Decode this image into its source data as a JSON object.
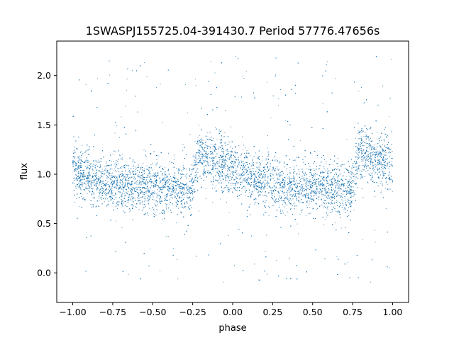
{
  "chart_data": {
    "type": "scatter",
    "title": "1SWASPJ155725.04-391430.7 Period 57776.47656s",
    "xlabel": "phase",
    "ylabel": "flux",
    "xlim": [
      -1.1,
      1.1
    ],
    "ylim": [
      -0.3,
      2.35
    ],
    "x_ticks": [
      -1.0,
      -0.75,
      -0.5,
      -0.25,
      0.0,
      0.25,
      0.5,
      0.75,
      1.0
    ],
    "x_tick_labels": [
      "−1.00",
      "−0.75",
      "−0.50",
      "−0.25",
      "0.00",
      "0.25",
      "0.50",
      "0.75",
      "1.00"
    ],
    "y_ticks": [
      0.0,
      0.5,
      1.0,
      1.5,
      2.0
    ],
    "y_tick_labels": [
      "0.0",
      "0.5",
      "1.0",
      "1.5",
      "2.0"
    ],
    "grid": false,
    "legend": "none",
    "point_color": "#1f77b4",
    "series": [
      {
        "phase_range": [
          -1.0,
          1.0
        ],
        "n_points": 16000,
        "profile": [
          [
            -1.0,
            1.02
          ],
          [
            -0.95,
            1.0
          ],
          [
            -0.9,
            0.97
          ],
          [
            -0.85,
            0.94
          ],
          [
            -0.8,
            0.92
          ],
          [
            -0.7,
            0.9
          ],
          [
            -0.6,
            0.88
          ],
          [
            -0.5,
            0.87
          ],
          [
            -0.4,
            0.86
          ],
          [
            -0.3,
            0.84
          ],
          [
            -0.27,
            0.8
          ],
          [
            -0.24,
            1.0
          ],
          [
            -0.21,
            1.2
          ],
          [
            -0.18,
            1.2
          ],
          [
            -0.12,
            1.15
          ],
          [
            -0.05,
            1.1
          ],
          [
            0.0,
            1.05
          ],
          [
            0.1,
            0.97
          ],
          [
            0.2,
            0.93
          ],
          [
            0.3,
            0.9
          ],
          [
            0.4,
            0.88
          ],
          [
            0.5,
            0.87
          ],
          [
            0.6,
            0.86
          ],
          [
            0.7,
            0.84
          ],
          [
            0.73,
            0.8
          ],
          [
            0.76,
            1.0
          ],
          [
            0.79,
            1.2
          ],
          [
            0.82,
            1.2
          ],
          [
            0.88,
            1.15
          ],
          [
            0.95,
            1.1
          ],
          [
            1.0,
            1.05
          ]
        ],
        "scatter_sigma": 0.13,
        "outlier_range": [
          -0.1,
          2.2
        ]
      }
    ]
  }
}
